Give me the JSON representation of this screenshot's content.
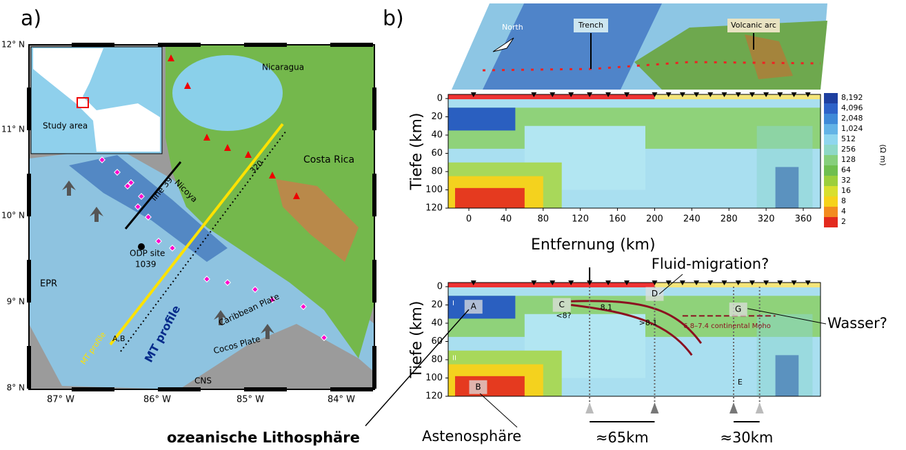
{
  "panel_a": {
    "label": "a)",
    "lat_labels": [
      "12° N",
      "11° N",
      "10° N",
      "9° N",
      "8° N"
    ],
    "lon_labels": [
      "87° W",
      "86° W",
      "85° W",
      "84° W"
    ],
    "inset_label": "Study area",
    "map_labels": {
      "nicaragua": "Nicaragua",
      "costa_rica": "Costa Rica",
      "line39": "line 39",
      "odp": "ODP site",
      "odp_num": "1039",
      "epr": "EPR",
      "caribbean": "Caribbean Plate",
      "cocos": "Cocos Plate",
      "cns": "CNS",
      "mt_profile": "MT profile",
      "mt_profile_small": "MT profile",
      "nicoya": "Nicoya",
      "ab": "A,B",
      "n320": "320"
    }
  },
  "panel_b": {
    "label": "b)",
    "block": {
      "north": "North",
      "trench": "Trench",
      "arc": "Volcanic arc"
    },
    "depth_ticks": [
      "0",
      "20",
      "40",
      "60",
      "80",
      "100",
      "120"
    ],
    "distance_ticks": [
      "0",
      "40",
      "80",
      "120",
      "160",
      "200",
      "240",
      "280",
      "320",
      "360"
    ],
    "y_title": "Tiefe (km)",
    "x_title": "Entfernung (km)",
    "colorbar": {
      "labels": [
        "8,192",
        "4,096",
        "2,048",
        "1,024",
        "512",
        "256",
        "128",
        "64",
        "32",
        "16",
        "8",
        "4",
        "2"
      ],
      "unit": "(Ω m)"
    },
    "annotations": {
      "fluid": "Fluid-migration?",
      "wasser": "Wasser?",
      "lithosphere": "ozeanische Lithosphäre",
      "asthenosphere": "Astenosphäre",
      "d65": "≈65km",
      "d30": "≈30km",
      "A": "A",
      "B": "B",
      "C": "C",
      "D": "D",
      "E": "E",
      "G": "G",
      "I": "I",
      "II": "II",
      "lt8": "<8?",
      "v81": "8.1",
      "gt81": ">8.1",
      "moho": "6.8–7.4 continental Moho"
    }
  }
}
